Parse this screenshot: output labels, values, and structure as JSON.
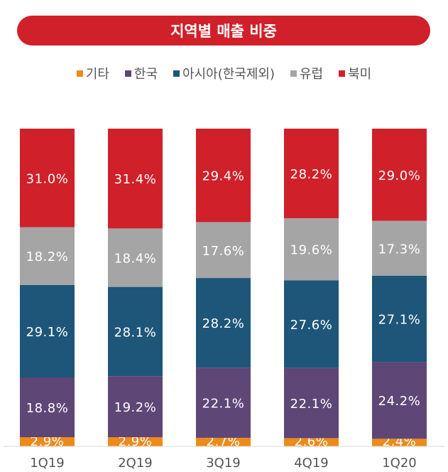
{
  "chart_data": {
    "type": "bar",
    "stacked": true,
    "title": "지역별 매출 비중",
    "categories": [
      "1Q19",
      "2Q19",
      "3Q19",
      "4Q19",
      "1Q20"
    ],
    "series": [
      {
        "name": "기타",
        "color": "#ee8a1a",
        "values": [
          2.9,
          2.9,
          2.7,
          2.6,
          2.4
        ]
      },
      {
        "name": "한국",
        "color": "#5e4677",
        "values": [
          18.8,
          19.2,
          22.1,
          22.1,
          24.2
        ]
      },
      {
        "name": "아시아(한국제외)",
        "color": "#1e5679",
        "values": [
          29.1,
          28.1,
          28.2,
          27.6,
          27.1
        ]
      },
      {
        "name": "유럽",
        "color": "#a5a5a5",
        "values": [
          18.2,
          18.4,
          17.6,
          19.6,
          17.3
        ]
      },
      {
        "name": "북미",
        "color": "#d0202a",
        "values": [
          31.0,
          31.4,
          29.4,
          28.2,
          29.0
        ]
      }
    ],
    "value_suffix": "%",
    "ylim": [
      0,
      100
    ],
    "legend_position": "top",
    "grid": false
  }
}
